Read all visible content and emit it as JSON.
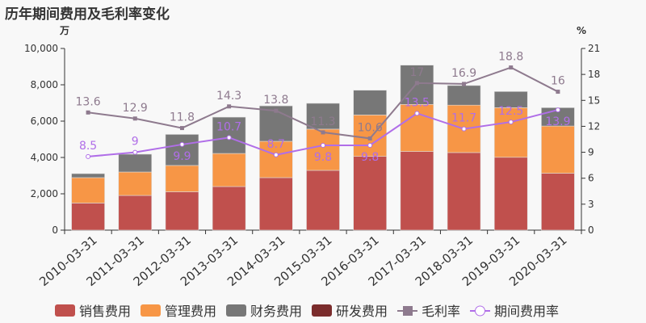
{
  "title": "历年期间费用及毛利率变化",
  "chart_data": {
    "type": "bar",
    "title": "历年期间费用及毛利率变化",
    "left_unit": "万",
    "right_unit": "%",
    "categories": [
      "2010-03-31",
      "2011-03-31",
      "2012-03-31",
      "2013-03-31",
      "2014-03-31",
      "2015-03-31",
      "2016-03-31",
      "2017-03-31",
      "2018-03-31",
      "2019-03-31",
      "2020-03-31"
    ],
    "ylim": [
      0,
      10000
    ],
    "yticks": [
      0,
      2000,
      4000,
      6000,
      8000,
      10000
    ],
    "ylim_right": [
      0,
      21
    ],
    "yticks_right": [
      0,
      3,
      6,
      9,
      12,
      15,
      18,
      21
    ],
    "stacked": true,
    "series": [
      {
        "name": "销售费用",
        "type": "bar",
        "color": "#c0504d",
        "values": [
          1490,
          1910,
          2110,
          2400,
          2890,
          3290,
          4060,
          4330,
          4270,
          4010,
          3130
        ]
      },
      {
        "name": "管理费用",
        "type": "bar",
        "color": "#f79646",
        "values": [
          1400,
          1290,
          1450,
          1820,
          2000,
          2270,
          2280,
          2590,
          2610,
          2730,
          2600
        ]
      },
      {
        "name": "财务费用",
        "type": "bar",
        "color": "#777777",
        "values": [
          220,
          980,
          1710,
          2000,
          1950,
          1420,
          1360,
          2160,
          1080,
          890,
          1010
        ]
      },
      {
        "name": "研发费用",
        "type": "bar",
        "color": "#7b2c2c",
        "values": [
          0,
          0,
          0,
          0,
          0,
          0,
          0,
          0,
          0,
          0,
          0
        ]
      },
      {
        "name": "毛利率",
        "type": "line",
        "axis": "right",
        "color": "#8e7a8e",
        "values": [
          13.6,
          12.9,
          11.8,
          14.3,
          13.8,
          11.3,
          10.6,
          17,
          16.9,
          18.8,
          16
        ]
      },
      {
        "name": "期间费用率",
        "type": "line",
        "axis": "right",
        "color": "#b06ee8",
        "values": [
          8.5,
          9,
          9.9,
          10.7,
          8.7,
          9.8,
          9.8,
          13.5,
          11.7,
          12.5,
          13.9
        ]
      }
    ],
    "legend": "bottom",
    "grid": false
  }
}
